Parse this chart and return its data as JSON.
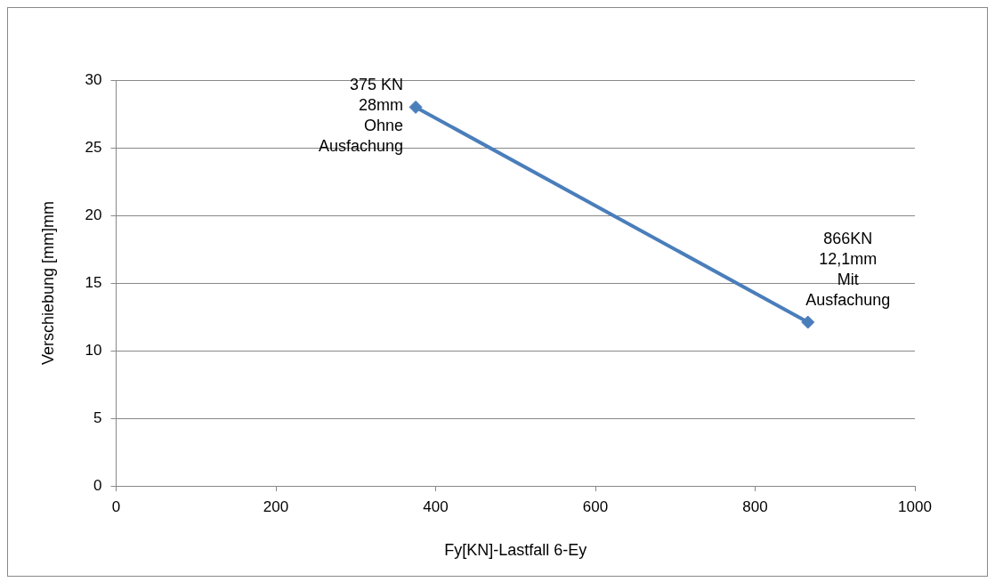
{
  "chart_data": {
    "type": "line",
    "xlabel": "Fy[KN]-Lastfall 6-Ey",
    "ylabel": "Verschiebung [mm]mm",
    "x": [
      375,
      866
    ],
    "series": [
      {
        "color": "#4a7ebb",
        "values": [
          28,
          12.1
        ]
      }
    ],
    "xlim": [
      0,
      1000
    ],
    "xticks": [
      0,
      200,
      400,
      600,
      800,
      1000
    ],
    "ylim": [
      0,
      30
    ],
    "yticks": [
      0,
      5,
      10,
      15,
      20,
      25,
      30
    ],
    "grid": "y",
    "legend": false,
    "marker": "diamond",
    "line_style": "solid",
    "annotations": [
      {
        "text": "375 KN\n28mm\nOhne\nAusfachung",
        "x": 375,
        "y": 28
      },
      {
        "text": "866KN\n12,1mm\nMit\nAusfachung",
        "x": 866,
        "y": 12.1
      }
    ]
  }
}
